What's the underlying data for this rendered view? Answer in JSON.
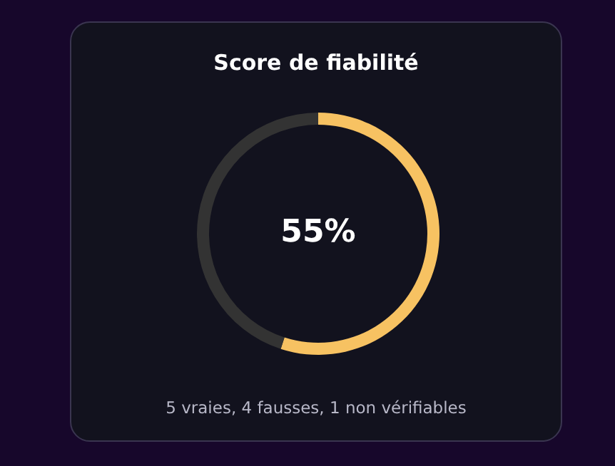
{
  "chart_data": {
    "type": "donut",
    "title": "Score de fiabilité",
    "categories": [
      null,
      null
    ],
    "values": [
      55,
      45
    ],
    "colors": [
      "#f7c262",
      "#333333"
    ],
    "annotations": [
      "55%",
      "5 vraies, 4 fausses, 1 non vérifiables"
    ]
  }
}
